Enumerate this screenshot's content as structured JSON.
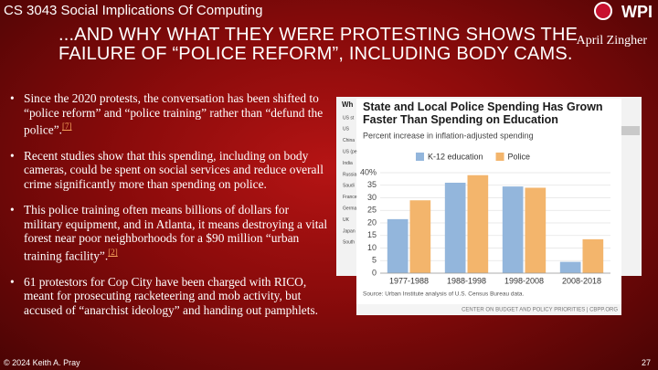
{
  "header": {
    "course": "CS 3043 Social Implications Of Computing",
    "logo": "WPI"
  },
  "title": "...AND WHY WHAT THEY WERE PROTESTING SHOWS THE FAILURE OF “POLICE REFORM”, INCLUDING BODY CAMS.",
  "author": "April Zingher",
  "bullets": [
    {
      "text": "Since the 2020 protests, the conversation has been shifted to “police reform” and “police training” rather than “defund the police”.",
      "ref": "[7]"
    },
    {
      "text": "Recent studies show that this spending, including on body cameras, could be spent on social services and reduce overall crime significantly more than spending on police."
    },
    {
      "text": "This police training often means billions of dollars for military equipment, and in Atlanta, it means destroying a vital forest near poor neighborhoods for a $90 million “urban training facility”.",
      "ref": "[2]"
    },
    {
      "text": "61 protestors for Cop City have been charged with RICO, meant for prosecuting racketeering and mob activity, but accused of “anarchist ideology” and handing out pamphlets."
    }
  ],
  "background_table": {
    "heading": "Wh",
    "labels": [
      "US st",
      "US",
      "China",
      "US (pe",
      "India",
      "Russia",
      "Saudi",
      "France",
      "Germa",
      "UK",
      "Japan",
      "South"
    ]
  },
  "chart_data": {
    "type": "bar",
    "title": "State and Local Police Spending Has Grown Faster Than Spending on Education",
    "subtitle": "Percent increase in inflation-adjusted spending",
    "categories": [
      "1977-1988",
      "1988-1998",
      "1998-2008",
      "2008-2018"
    ],
    "series": [
      {
        "name": "K-12 education",
        "color": "#93b6dc",
        "values": [
          21.5,
          36,
          34.5,
          4.5
        ]
      },
      {
        "name": "Police",
        "color": "#f3b56c",
        "values": [
          29,
          39,
          34,
          13.5
        ]
      }
    ],
    "ylim": [
      0,
      40
    ],
    "yticks": [
      0,
      5,
      10,
      15,
      20,
      25,
      30,
      35,
      {
        "value": 40,
        "label": "40%"
      }
    ],
    "source": "Source: Urban Institute analysis of U.S. Census Bureau data.",
    "credit": "CENTER ON BUDGET AND POLICY PRIORITIES | CBPP.ORG"
  },
  "footer": {
    "copyright": "© 2024 Keith A. Pray",
    "page": "27"
  }
}
